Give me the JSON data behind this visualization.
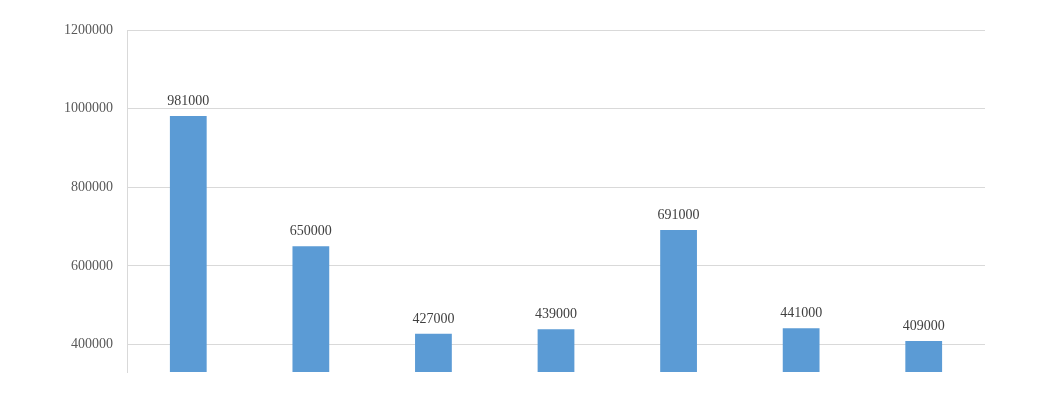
{
  "chart_data": {
    "type": "bar",
    "categories": [
      null,
      null,
      null,
      null,
      null,
      null,
      null
    ],
    "values": [
      981000,
      650000,
      427000,
      439000,
      691000,
      441000,
      409000
    ],
    "color": "#5b9bd5",
    "ylim": [
      330000,
      1200000
    ],
    "yticks": [
      400000,
      600000,
      800000,
      1000000,
      1200000
    ],
    "grid": "y",
    "data_labels": true,
    "legend": false
  }
}
